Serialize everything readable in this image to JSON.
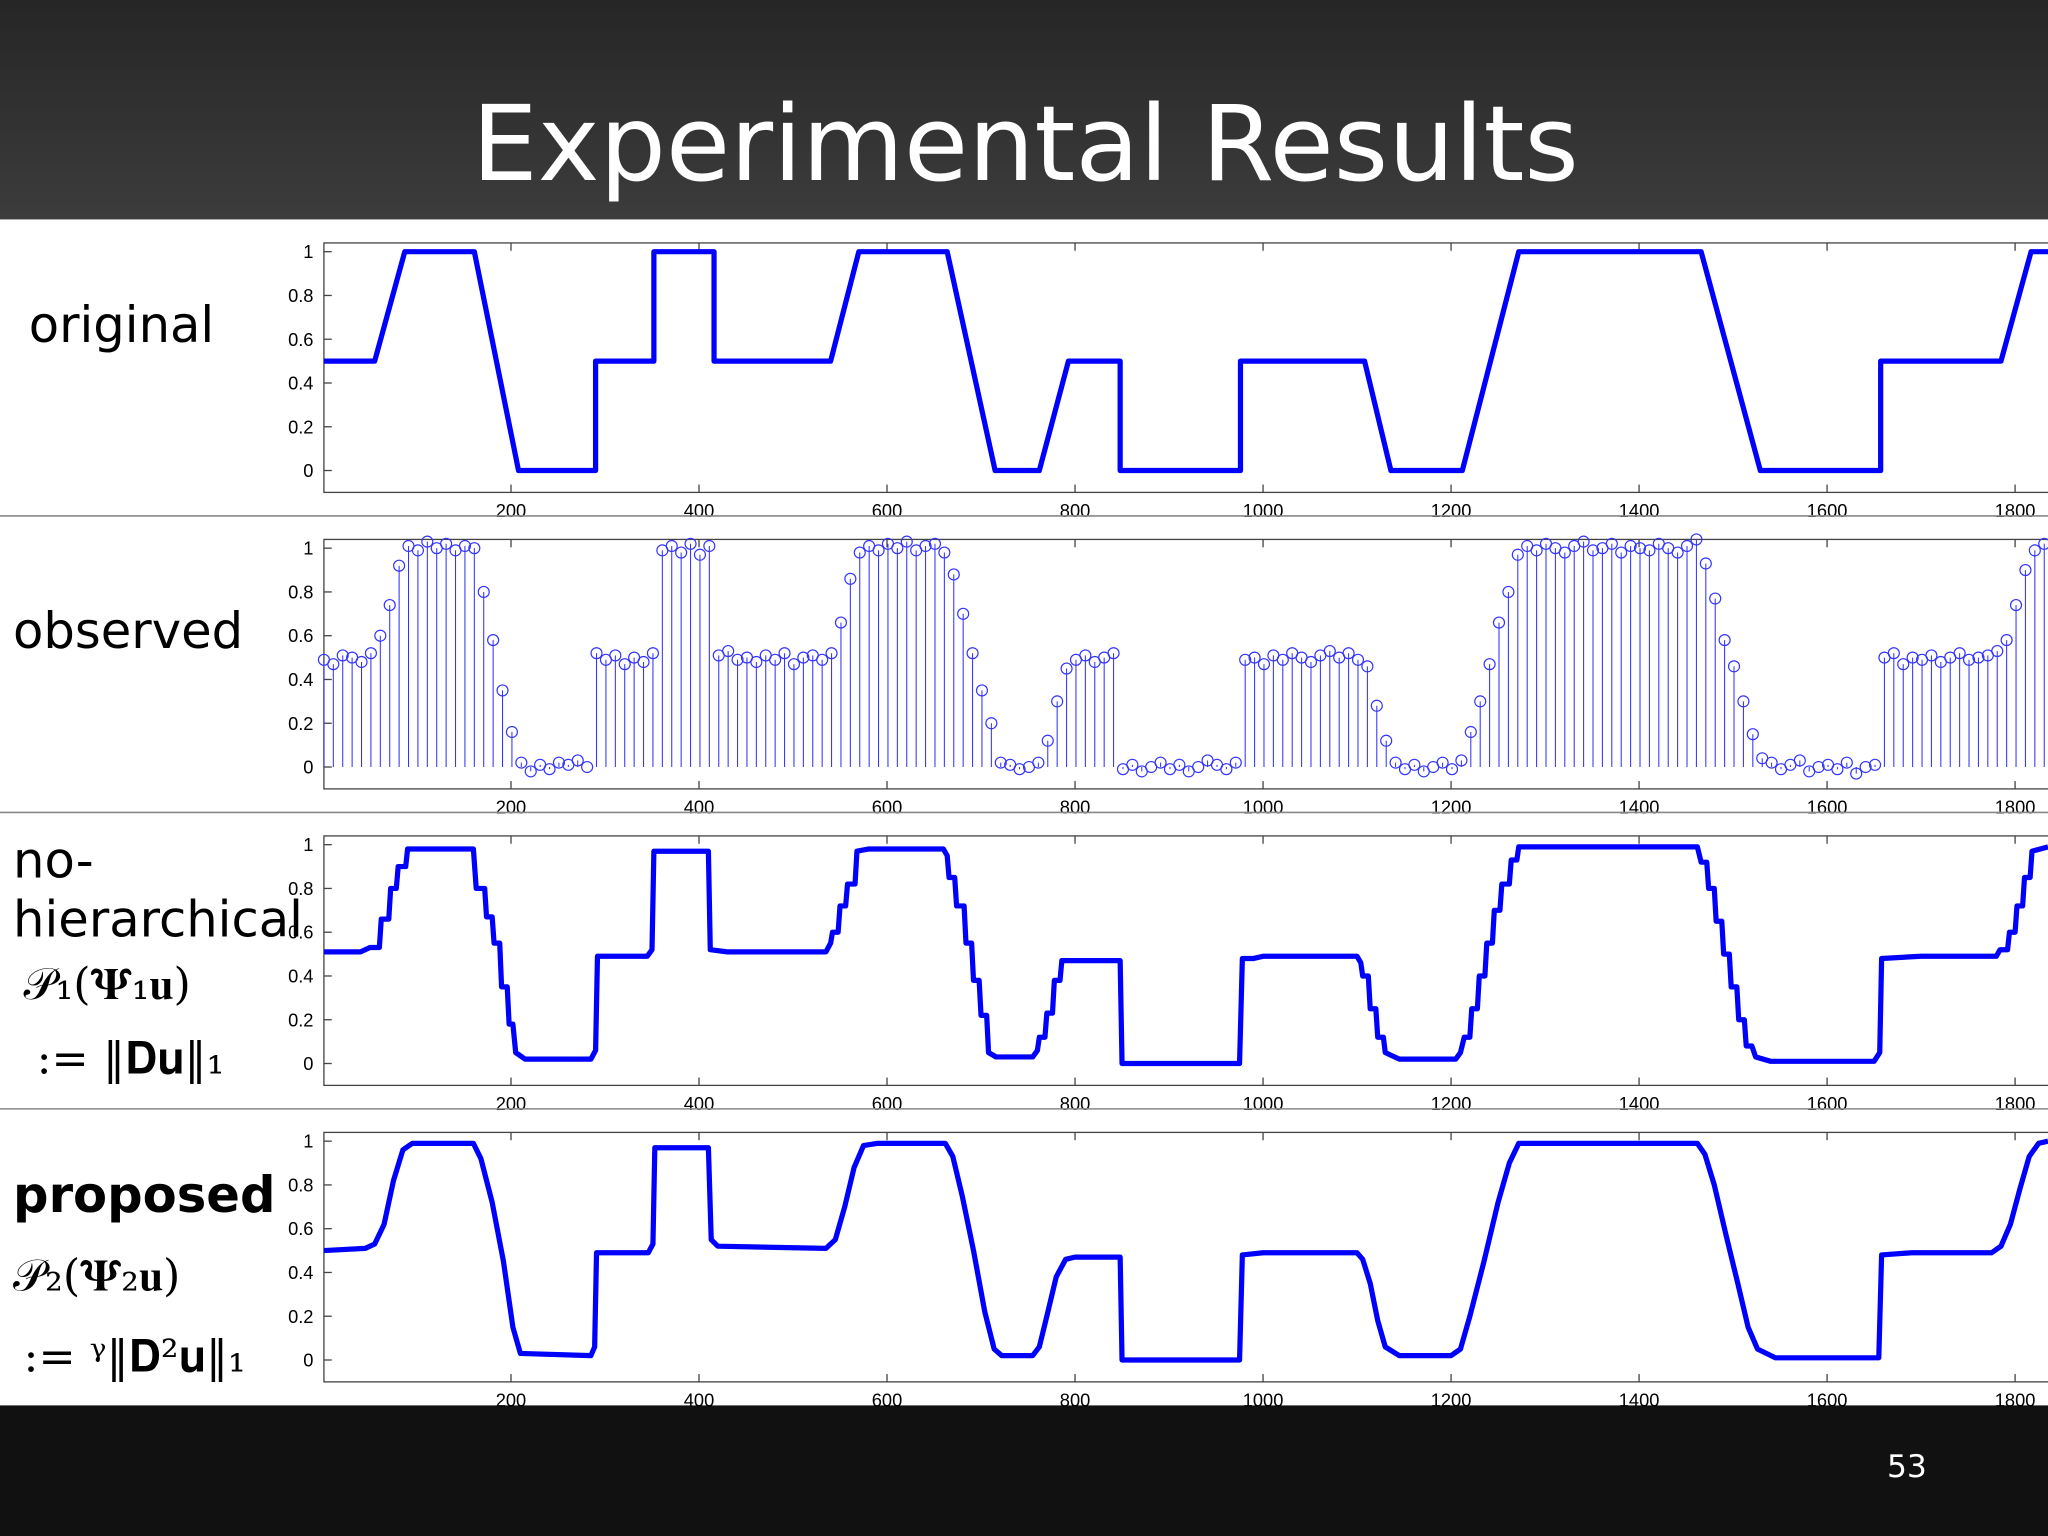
{
  "title": "Experimental Results",
  "page_number": "53",
  "chart_data": [
    {
      "type": "line",
      "label": [
        "original"
      ],
      "color": "#0000ff",
      "x": [
        1,
        55,
        87,
        161,
        208,
        290,
        290,
        352,
        352,
        416,
        416,
        540,
        570,
        664,
        715,
        762,
        793,
        848,
        848,
        976,
        976,
        1108,
        1136,
        1212,
        1272,
        1466,
        1529,
        1657,
        1657,
        1785,
        1817,
        1835
      ],
      "values": [
        0.5,
        0.5,
        1,
        1,
        0,
        0,
        0.5,
        0.5,
        1,
        1,
        0.5,
        0.5,
        1,
        1,
        0,
        0,
        0.5,
        0.5,
        0,
        0,
        0.5,
        0.5,
        0,
        0,
        1,
        1,
        0,
        0,
        0.5,
        0.5,
        1,
        1
      ],
      "xlim": [
        1,
        1835
      ],
      "ylim": [
        -0.1,
        1.04
      ],
      "xticks": [
        200,
        400,
        600,
        800,
        1000,
        1200,
        1400,
        1600,
        1800
      ],
      "yticks": [
        0,
        0.2,
        0.4,
        0.6,
        0.8,
        1
      ]
    },
    {
      "type": "stem",
      "label": [
        "observed"
      ],
      "color": "#3333ff",
      "x": [
        1,
        11,
        21,
        31,
        41,
        51,
        61,
        71,
        81,
        91,
        101,
        111,
        121,
        131,
        141,
        151,
        161,
        171,
        181,
        191,
        201,
        211,
        221,
        231,
        241,
        251,
        261,
        271,
        281,
        291,
        301,
        311,
        321,
        331,
        341,
        351,
        361,
        371,
        381,
        391,
        401,
        411,
        421,
        431,
        441,
        451,
        461,
        471,
        481,
        491,
        501,
        511,
        521,
        531,
        541,
        551,
        561,
        571,
        581,
        591,
        601,
        611,
        621,
        631,
        641,
        651,
        661,
        671,
        681,
        691,
        701,
        711,
        721,
        731,
        741,
        751,
        761,
        771,
        781,
        791,
        801,
        811,
        821,
        831,
        841,
        851,
        861,
        871,
        881,
        891,
        901,
        911,
        921,
        931,
        941,
        951,
        961,
        971,
        981,
        991,
        1001,
        1011,
        1021,
        1031,
        1041,
        1051,
        1061,
        1071,
        1081,
        1091,
        1101,
        1111,
        1121,
        1131,
        1141,
        1151,
        1161,
        1171,
        1181,
        1191,
        1201,
        1211,
        1221,
        1231,
        1241,
        1251,
        1261,
        1271,
        1281,
        1291,
        1301,
        1311,
        1321,
        1331,
        1341,
        1351,
        1361,
        1371,
        1381,
        1391,
        1401,
        1411,
        1421,
        1431,
        1441,
        1451,
        1461,
        1471,
        1481,
        1491,
        1501,
        1511,
        1521,
        1531,
        1541,
        1551,
        1561,
        1571,
        1581,
        1591,
        1601,
        1611,
        1621,
        1631,
        1641,
        1651,
        1661,
        1671,
        1681,
        1691,
        1701,
        1711,
        1721,
        1731,
        1741,
        1751,
        1761,
        1771,
        1781,
        1791,
        1801,
        1811,
        1821,
        1831
      ],
      "values": [
        0.49,
        0.47,
        0.51,
        0.5,
        0.48,
        0.52,
        0.6,
        0.74,
        0.92,
        1.01,
        0.99,
        1.03,
        1.0,
        1.02,
        0.99,
        1.01,
        1.0,
        0.8,
        0.58,
        0.35,
        0.16,
        0.02,
        -0.02,
        0.01,
        -0.01,
        0.02,
        0.01,
        0.03,
        0,
        0.52,
        0.49,
        0.51,
        0.47,
        0.5,
        0.48,
        0.52,
        0.99,
        1.01,
        0.98,
        1.02,
        0.97,
        1.01,
        0.51,
        0.53,
        0.49,
        0.5,
        0.48,
        0.51,
        0.49,
        0.52,
        0.47,
        0.5,
        0.51,
        0.49,
        0.52,
        0.66,
        0.86,
        0.98,
        1.01,
        0.99,
        1.02,
        1.0,
        1.03,
        0.99,
        1.01,
        1.02,
        0.98,
        0.88,
        0.7,
        0.52,
        0.35,
        0.2,
        0.02,
        0.01,
        -0.01,
        0,
        0.02,
        0.12,
        0.3,
        0.45,
        0.49,
        0.51,
        0.48,
        0.5,
        0.52,
        -0.01,
        0.01,
        -0.02,
        0,
        0.02,
        -0.01,
        0.01,
        -0.02,
        0,
        0.03,
        0.01,
        -0.01,
        0.02,
        0.49,
        0.5,
        0.47,
        0.51,
        0.49,
        0.52,
        0.5,
        0.48,
        0.51,
        0.53,
        0.5,
        0.52,
        0.49,
        0.46,
        0.28,
        0.12,
        0.02,
        -0.01,
        0.01,
        -0.02,
        0,
        0.02,
        -0.01,
        0.03,
        0.16,
        0.3,
        0.47,
        0.66,
        0.8,
        0.97,
        1.01,
        0.99,
        1.02,
        1.0,
        0.98,
        1.01,
        1.03,
        0.99,
        1.0,
        1.02,
        0.98,
        1.01,
        1.0,
        0.99,
        1.02,
        1.0,
        0.98,
        1.01,
        1.04,
        0.93,
        0.77,
        0.58,
        0.46,
        0.3,
        0.15,
        0.04,
        0.02,
        -0.01,
        0.01,
        0.03,
        -0.02,
        0,
        0.01,
        -0.01,
        0.02,
        -0.03,
        0,
        0.01,
        0.5,
        0.52,
        0.47,
        0.5,
        0.49,
        0.51,
        0.48,
        0.5,
        0.52,
        0.49,
        0.5,
        0.51,
        0.53,
        0.58,
        0.74,
        0.9,
        0.99,
        1.02
      ],
      "xlim": [
        1,
        1835
      ],
      "ylim": [
        -0.1,
        1.04
      ],
      "xticks": [
        200,
        400,
        600,
        800,
        1000,
        1200,
        1400,
        1600,
        1800
      ],
      "yticks": [
        0,
        0.2,
        0.4,
        0.6,
        0.8,
        1
      ]
    },
    {
      "type": "line",
      "label": [
        "no-",
        "hierarchical",
        "𝒫₁(𝚿₁𝐮)",
        ":= ‖𝐃𝐮‖₁"
      ],
      "color": "#0000ff",
      "x": [
        1,
        40,
        50,
        60,
        62,
        70,
        72,
        78,
        80,
        88,
        90,
        160,
        163,
        172,
        174,
        180,
        182,
        188,
        190,
        196,
        198,
        202,
        205,
        215,
        285,
        290,
        292,
        345,
        350,
        352,
        410,
        412,
        430,
        535,
        540,
        542,
        548,
        550,
        556,
        558,
        566,
        568,
        580,
        660,
        664,
        666,
        672,
        674,
        682,
        684,
        690,
        692,
        698,
        700,
        706,
        708,
        716,
        755,
        760,
        762,
        768,
        770,
        776,
        778,
        784,
        786,
        848,
        850,
        975,
        978,
        990,
        1000,
        1100,
        1104,
        1106,
        1112,
        1114,
        1120,
        1122,
        1128,
        1130,
        1145,
        1205,
        1210,
        1214,
        1220,
        1222,
        1228,
        1230,
        1236,
        1238,
        1244,
        1246,
        1252,
        1254,
        1262,
        1264,
        1270,
        1272,
        1462,
        1466,
        1472,
        1474,
        1480,
        1482,
        1488,
        1490,
        1496,
        1498,
        1504,
        1506,
        1512,
        1514,
        1520,
        1524,
        1540,
        1650,
        1656,
        1658,
        1700,
        1780,
        1784,
        1792,
        1794,
        1800,
        1802,
        1808,
        1810,
        1816,
        1818,
        1835
      ],
      "values": [
        0.51,
        0.51,
        0.53,
        0.53,
        0.66,
        0.66,
        0.8,
        0.8,
        0.9,
        0.9,
        0.98,
        0.98,
        0.8,
        0.8,
        0.67,
        0.67,
        0.55,
        0.55,
        0.35,
        0.35,
        0.18,
        0.18,
        0.05,
        0.02,
        0.02,
        0.06,
        0.49,
        0.49,
        0.52,
        0.97,
        0.97,
        0.52,
        0.51,
        0.51,
        0.55,
        0.6,
        0.6,
        0.72,
        0.72,
        0.82,
        0.82,
        0.97,
        0.98,
        0.98,
        0.95,
        0.85,
        0.85,
        0.72,
        0.72,
        0.55,
        0.55,
        0.38,
        0.38,
        0.22,
        0.22,
        0.05,
        0.03,
        0.03,
        0.06,
        0.12,
        0.12,
        0.23,
        0.23,
        0.38,
        0.38,
        0.47,
        0.47,
        0,
        0,
        0.48,
        0.48,
        0.49,
        0.49,
        0.46,
        0.4,
        0.4,
        0.25,
        0.25,
        0.12,
        0.12,
        0.05,
        0.02,
        0.02,
        0.05,
        0.12,
        0.12,
        0.25,
        0.25,
        0.4,
        0.4,
        0.55,
        0.55,
        0.7,
        0.7,
        0.82,
        0.82,
        0.93,
        0.93,
        0.99,
        0.99,
        0.92,
        0.92,
        0.8,
        0.8,
        0.65,
        0.65,
        0.5,
        0.5,
        0.35,
        0.35,
        0.2,
        0.2,
        0.08,
        0.08,
        0.03,
        0.01,
        0.01,
        0.05,
        0.48,
        0.49,
        0.49,
        0.52,
        0.52,
        0.6,
        0.6,
        0.72,
        0.72,
        0.85,
        0.85,
        0.97,
        0.99
      ],
      "xlim": [
        1,
        1835
      ],
      "ylim": [
        -0.1,
        1.04
      ],
      "xticks": [
        200,
        400,
        600,
        800,
        1000,
        1200,
        1400,
        1600,
        1800
      ],
      "yticks": [
        0,
        0.2,
        0.4,
        0.6,
        0.8,
        1
      ]
    },
    {
      "type": "line",
      "label": [
        "proposed",
        "𝒫₂(𝚿₂𝐮)",
        ":= ᵞ‖𝐃²𝐮‖₁"
      ],
      "color": "#0000ff",
      "x": [
        1,
        45,
        55,
        65,
        75,
        85,
        95,
        160,
        168,
        180,
        192,
        202,
        210,
        285,
        289,
        291,
        346,
        351,
        353,
        410,
        413,
        420,
        535,
        545,
        555,
        565,
        575,
        590,
        662,
        670,
        680,
        692,
        704,
        714,
        722,
        755,
        762,
        770,
        780,
        790,
        800,
        848,
        850,
        975,
        978,
        1000,
        1100,
        1106,
        1114,
        1122,
        1130,
        1145,
        1200,
        1210,
        1220,
        1235,
        1250,
        1262,
        1272,
        1462,
        1470,
        1480,
        1492,
        1505,
        1516,
        1526,
        1545,
        1655,
        1658,
        1690,
        1775,
        1785,
        1795,
        1805,
        1815,
        1825,
        1835
      ],
      "values": [
        0.5,
        0.51,
        0.53,
        0.62,
        0.82,
        0.96,
        0.99,
        0.99,
        0.92,
        0.72,
        0.45,
        0.15,
        0.03,
        0.02,
        0.06,
        0.49,
        0.49,
        0.53,
        0.97,
        0.97,
        0.55,
        0.52,
        0.51,
        0.55,
        0.7,
        0.88,
        0.98,
        0.99,
        0.99,
        0.93,
        0.75,
        0.5,
        0.22,
        0.05,
        0.02,
        0.02,
        0.06,
        0.2,
        0.38,
        0.46,
        0.47,
        0.47,
        0,
        0,
        0.48,
        0.49,
        0.49,
        0.46,
        0.35,
        0.18,
        0.06,
        0.02,
        0.02,
        0.05,
        0.2,
        0.45,
        0.72,
        0.9,
        0.99,
        0.99,
        0.94,
        0.8,
        0.58,
        0.35,
        0.15,
        0.05,
        0.01,
        0.01,
        0.48,
        0.49,
        0.49,
        0.52,
        0.62,
        0.78,
        0.93,
        0.99,
        1
      ],
      "xlim": [
        1,
        1835
      ],
      "ylim": [
        -0.1,
        1.04
      ],
      "xticks": [
        200,
        400,
        600,
        800,
        1000,
        1200,
        1400,
        1600,
        1800
      ],
      "yticks": [
        0,
        0.2,
        0.4,
        0.6,
        0.8,
        1
      ]
    }
  ]
}
